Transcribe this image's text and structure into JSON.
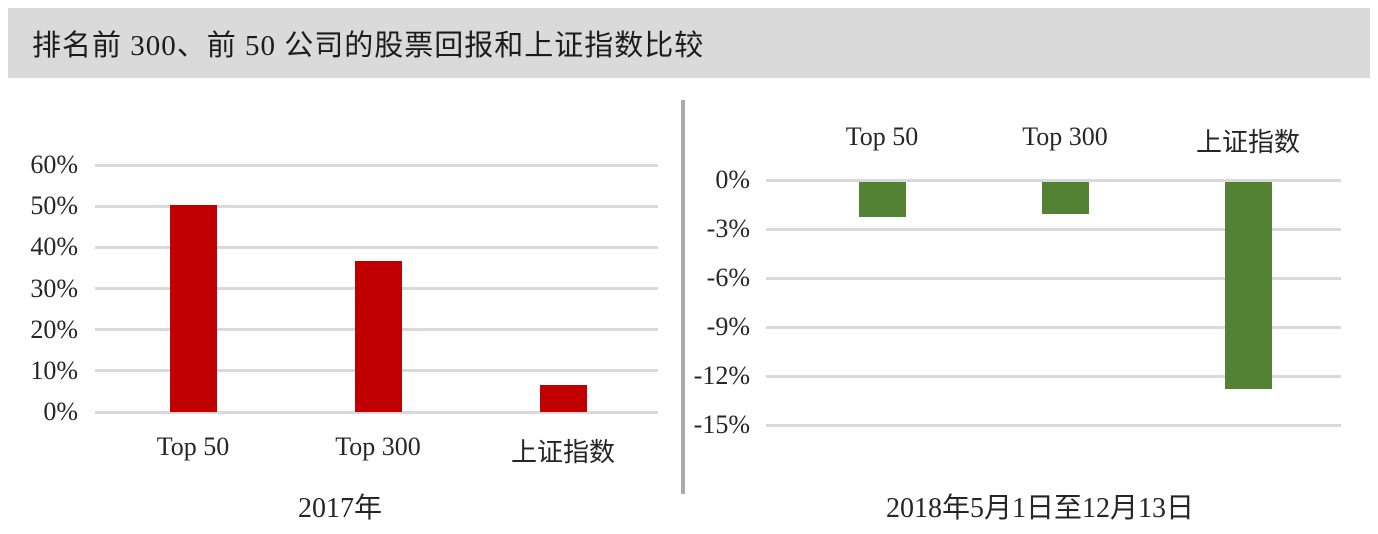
{
  "header": {
    "title": "排名前 300、前 50 公司的股票回报和上证指数比较"
  },
  "colors": {
    "banner_background": "#dadada",
    "left_bar": "#c00000",
    "right_bar": "#548235",
    "gridline": "#d9d9d9",
    "divider": "#ababab",
    "text": "#262626"
  },
  "chart_data": [
    {
      "type": "bar",
      "title": "2017年",
      "categories": [
        "Top 50",
        "Top 300",
        "上证指数"
      ],
      "values": [
        50.4,
        36.6,
        6.6
      ],
      "unit": "%",
      "bar_color": "#c00000",
      "ylim": [
        0,
        60
      ],
      "yticks": [
        "60%",
        "50%",
        "40%",
        "30%",
        "20%",
        "10%",
        "0%"
      ],
      "ytick_values": [
        60,
        50,
        40,
        30,
        20,
        10,
        0
      ],
      "grid": true,
      "legend": "none",
      "category_label_position": "below-axis",
      "xlabel": "2017年",
      "ylabel": ""
    },
    {
      "type": "bar",
      "title": "2018年5月1日至12月13日",
      "categories": [
        "Top 50",
        "Top 300",
        "上证指数"
      ],
      "values": [
        -2.2,
        -2.0,
        -12.7
      ],
      "unit": "%",
      "bar_color": "#548235",
      "ylim": [
        -15,
        0
      ],
      "yticks": [
        "0%",
        "-3%",
        "-6%",
        "-9%",
        "-12%",
        "-15%"
      ],
      "ytick_values": [
        0,
        -3,
        -6,
        -9,
        -12,
        -15
      ],
      "grid": true,
      "legend": "none",
      "category_label_position": "above-plot",
      "xlabel": "2018年5月1日至12月13日",
      "ylabel": ""
    }
  ]
}
